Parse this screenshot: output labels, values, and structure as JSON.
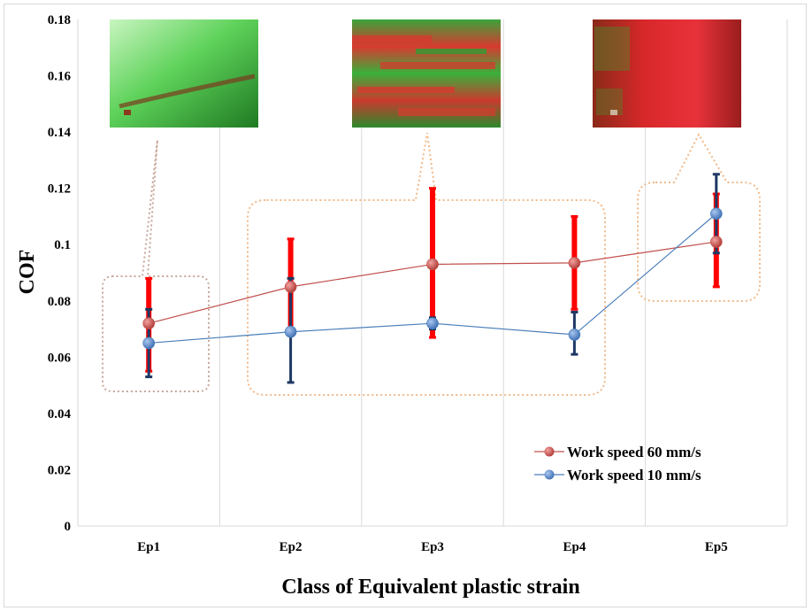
{
  "chart_data": {
    "type": "line",
    "categories": [
      "Ep1",
      "Ep2",
      "Ep3",
      "Ep4",
      "Ep5"
    ],
    "xlabel": "Class of Equivalent plastic strain",
    "ylabel": "COF",
    "ylim": [
      0,
      0.18
    ],
    "yticks": [
      "0",
      "0.02",
      "0.04",
      "0.06",
      "0.08",
      "0.1",
      "0.12",
      "0.14",
      "0.16",
      "0.18"
    ],
    "grid": "vertical",
    "legend_position": "bottom-right",
    "series": [
      {
        "name": "Work speed 60 mm/s",
        "color": "#c0504d",
        "error_bar_color": "#ff0000",
        "values": [
          0.072,
          0.085,
          0.093,
          0.0935,
          0.101
        ],
        "error_low": [
          0.055,
          0.069,
          0.067,
          0.077,
          0.085
        ],
        "error_high": [
          0.088,
          0.102,
          0.12,
          0.11,
          0.118
        ]
      },
      {
        "name": "Work speed 10 mm/s",
        "color": "#4a7ebb",
        "error_bar_color": "#1f3864",
        "values": [
          0.065,
          0.069,
          0.072,
          0.068,
          0.111
        ],
        "error_low": [
          0.053,
          0.051,
          0.07,
          0.061,
          0.097
        ],
        "error_high": [
          0.077,
          0.088,
          0.074,
          0.076,
          0.125
        ]
      }
    ],
    "inset_images": [
      {
        "name": "micrograph-ep1",
        "category": "Ep1",
        "tone": "green"
      },
      {
        "name": "micrograph-ep3",
        "category": "Ep3",
        "tone": "mixed"
      },
      {
        "name": "micrograph-ep5",
        "category": "Ep5",
        "tone": "red"
      }
    ]
  }
}
